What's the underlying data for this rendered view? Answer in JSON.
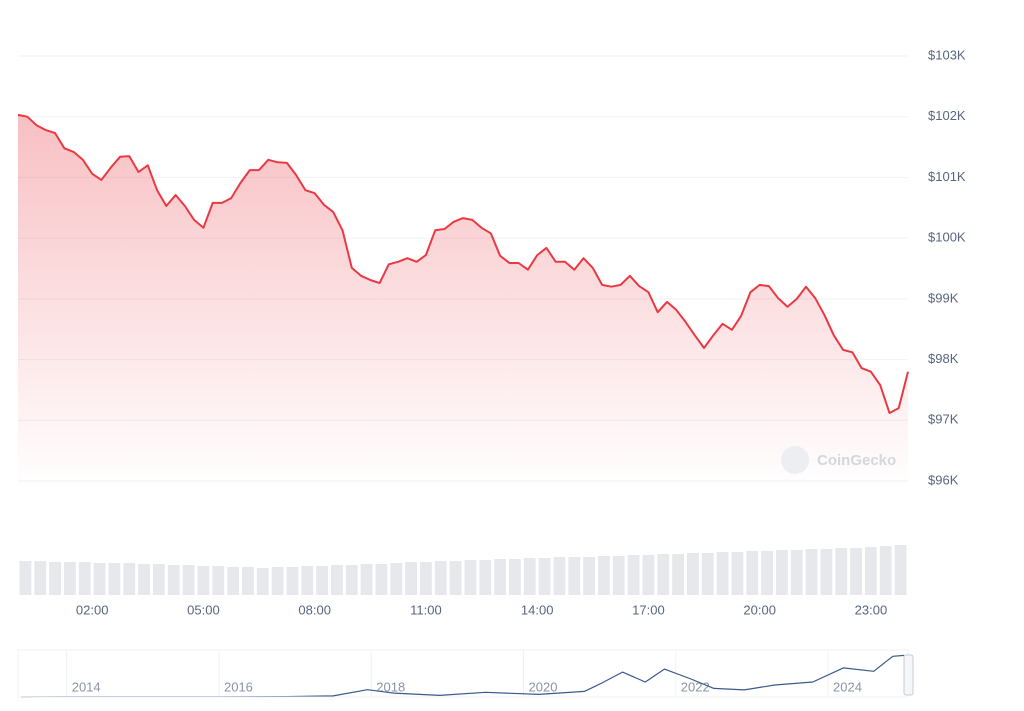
{
  "chart_data": [
    {
      "type": "line",
      "color": "#ea3943",
      "grid": true,
      "watermark": "CoinGecko",
      "xlim": [
        0,
        24
      ],
      "xticks": [
        {
          "value": 2,
          "label": "02:00"
        },
        {
          "value": 5,
          "label": "05:00"
        },
        {
          "value": 8,
          "label": "08:00"
        },
        {
          "value": 11,
          "label": "11:00"
        },
        {
          "value": 14,
          "label": "14:00"
        },
        {
          "value": 17,
          "label": "17:00"
        },
        {
          "value": 20,
          "label": "20:00"
        },
        {
          "value": 23,
          "label": "23:00"
        }
      ],
      "ylim": [
        96000,
        103000
      ],
      "yticks": [
        {
          "value": 96000,
          "label": "$96K"
        },
        {
          "value": 97000,
          "label": "$97K"
        },
        {
          "value": 98000,
          "label": "$98K"
        },
        {
          "value": 99000,
          "label": "$99K"
        },
        {
          "value": 100000,
          "label": "$100K"
        },
        {
          "value": 101000,
          "label": "$101K"
        },
        {
          "value": 102000,
          "label": "$102K"
        },
        {
          "value": 103000,
          "label": "$103K"
        }
      ],
      "x": [
        0,
        0.25,
        0.5,
        0.75,
        1,
        1.25,
        1.5,
        1.75,
        2,
        2.25,
        2.5,
        2.75,
        3,
        3.25,
        3.5,
        3.75,
        4,
        4.25,
        4.5,
        4.75,
        5,
        5.25,
        5.5,
        5.75,
        6,
        6.25,
        6.5,
        6.75,
        7,
        7.25,
        7.5,
        7.75,
        8,
        8.25,
        8.5,
        8.75,
        9,
        9.25,
        9.5,
        9.75,
        10,
        10.25,
        10.5,
        10.75,
        11,
        11.25,
        11.5,
        11.75,
        12,
        12.25,
        12.5,
        12.75,
        13,
        13.25,
        13.5,
        13.75,
        14,
        14.25,
        14.5,
        14.75,
        15,
        15.25,
        15.5,
        15.75,
        16,
        16.25,
        16.5,
        16.75,
        17,
        17.25,
        17.5,
        17.75,
        18,
        18.25,
        18.5,
        18.75,
        19,
        19.25,
        19.5,
        19.75,
        20,
        20.25,
        20.5,
        20.75,
        21,
        21.25,
        21.5,
        21.75,
        22,
        22.25,
        22.5,
        22.75,
        23,
        23.25,
        23.5,
        23.75,
        24
      ],
      "values": [
        102030,
        102000,
        101860,
        101780,
        101730,
        101480,
        101420,
        101290,
        101060,
        100960,
        101160,
        101340,
        101350,
        101090,
        101200,
        100790,
        100530,
        100710,
        100530,
        100300,
        100170,
        100580,
        100580,
        100660,
        100910,
        101120,
        101120,
        101290,
        101250,
        101240,
        101040,
        100790,
        100740,
        100550,
        100430,
        100130,
        99510,
        99380,
        99310,
        99260,
        99570,
        99610,
        99670,
        99610,
        99720,
        100130,
        100150,
        100270,
        100330,
        100300,
        100170,
        100080,
        99710,
        99590,
        99590,
        99480,
        99720,
        99840,
        99610,
        99610,
        99480,
        99670,
        99510,
        99230,
        99200,
        99230,
        99380,
        99210,
        99110,
        98780,
        98950,
        98820,
        98620,
        98400,
        98190,
        98400,
        98590,
        98490,
        98720,
        99110,
        99230,
        99210,
        99010,
        98870,
        99000,
        99200,
        99010,
        98730,
        98400,
        98160,
        98120,
        97860,
        97800,
        97580,
        97120,
        97200,
        97800
      ]
    },
    {
      "type": "bar",
      "color": "#e6e8ec",
      "xlim": [
        0,
        24
      ],
      "ylim": [
        0,
        60
      ],
      "x": [
        0.2,
        0.6,
        1,
        1.4,
        1.8,
        2.2,
        2.6,
        3,
        3.4,
        3.8,
        4.2,
        4.6,
        5,
        5.4,
        5.8,
        6.2,
        6.6,
        7,
        7.4,
        7.8,
        8.2,
        8.6,
        9,
        9.4,
        9.8,
        10.2,
        10.6,
        11,
        11.4,
        11.8,
        12.2,
        12.6,
        13,
        13.4,
        13.8,
        14.2,
        14.6,
        15,
        15.4,
        15.8,
        16.2,
        16.6,
        17,
        17.4,
        17.8,
        18.2,
        18.6,
        19,
        19.4,
        19.8,
        20.2,
        20.6,
        21,
        21.4,
        21.8,
        22.2,
        22.6,
        23,
        23.4,
        23.8
      ],
      "values": [
        34,
        34,
        33,
        33,
        33,
        32,
        32,
        32,
        31,
        31,
        30,
        30,
        29,
        29,
        28,
        28,
        27,
        28,
        28,
        29,
        29,
        30,
        30,
        31,
        31,
        32,
        33,
        33,
        34,
        34,
        35,
        35,
        36,
        36,
        37,
        37,
        38,
        38,
        38,
        39,
        39,
        40,
        40,
        41,
        41,
        42,
        42,
        43,
        43,
        44,
        44,
        45,
        45,
        46,
        46,
        47,
        47,
        48,
        49,
        50
      ]
    },
    {
      "type": "line",
      "color": "#3a5a8c",
      "grid": true,
      "xlim": [
        2013.36,
        2025.05
      ],
      "ylim": [
        0,
        105000
      ],
      "xticks": [
        2014,
        2016,
        2018,
        2020,
        2022,
        2024
      ],
      "x": [
        2013.4,
        2014,
        2015,
        2016,
        2016.9,
        2017.5,
        2017.95,
        2018.3,
        2018.9,
        2019.5,
        2020.2,
        2020.8,
        2021,
        2021.3,
        2021.6,
        2021.85,
        2022.2,
        2022.5,
        2022.9,
        2023.3,
        2023.8,
        2024.2,
        2024.6,
        2024.85,
        2025
      ],
      "values": [
        100,
        500,
        300,
        400,
        900,
        2500,
        17000,
        9000,
        3700,
        11000,
        6000,
        13000,
        30000,
        58000,
        35000,
        65000,
        42000,
        20000,
        16500,
        28000,
        35000,
        68000,
        60000,
        95000,
        97000
      ]
    }
  ]
}
